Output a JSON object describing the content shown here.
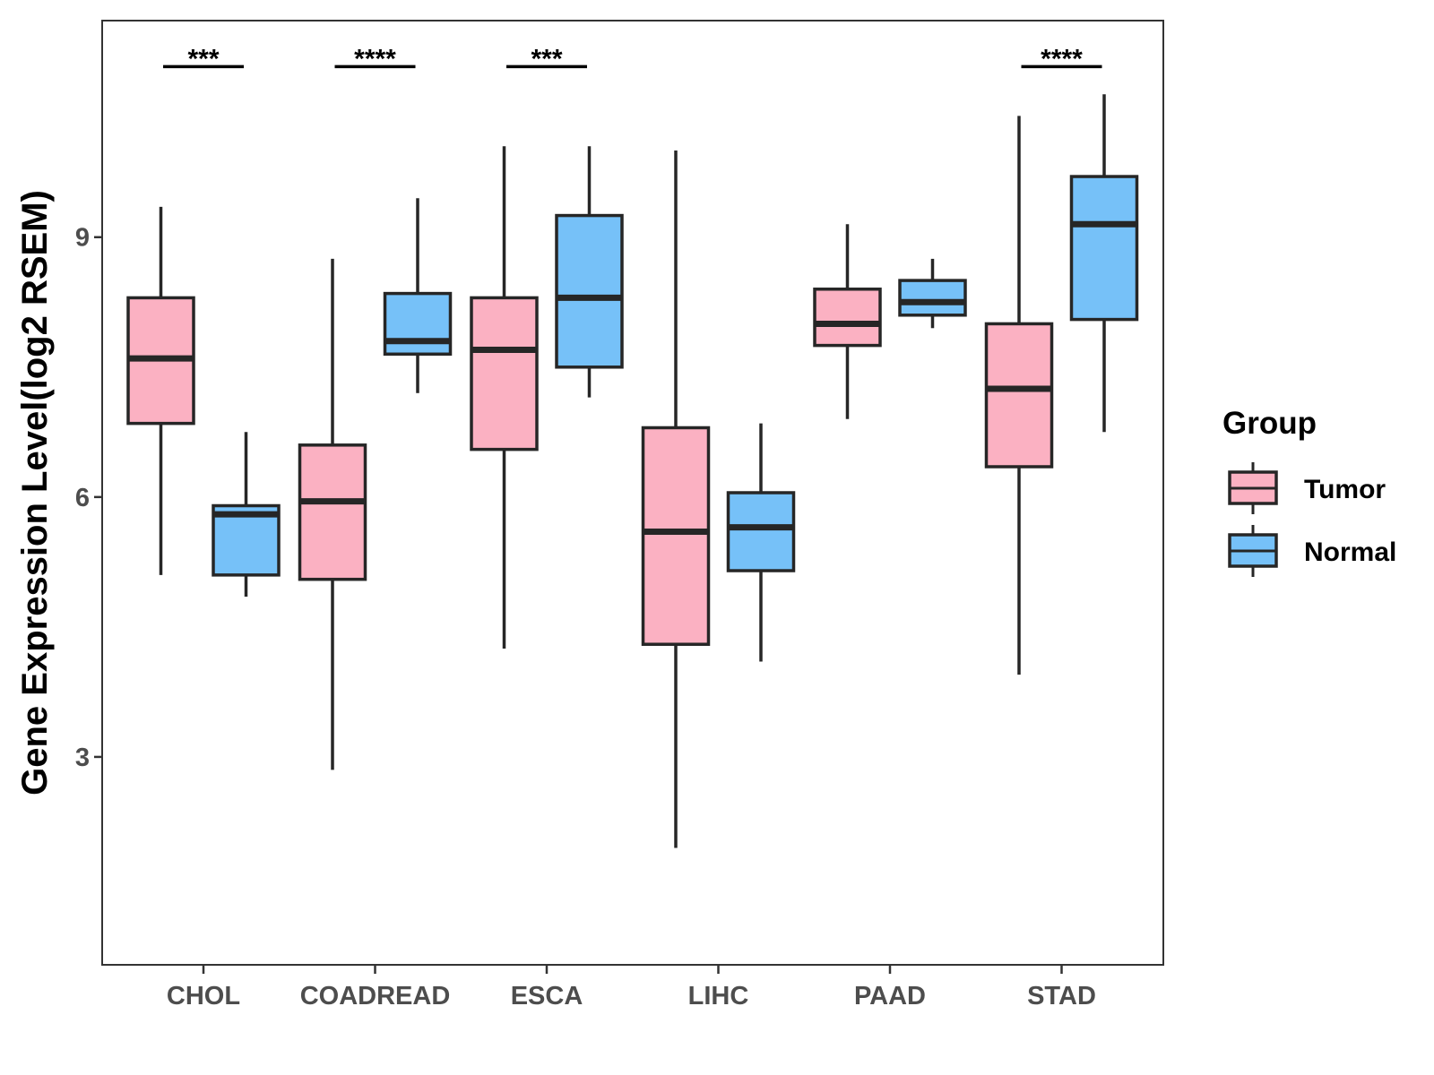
{
  "chart_data": {
    "type": "boxplot",
    "title": "",
    "xlabel": "",
    "ylabel": "Gene Expression Level(log2 RSEM)",
    "ylim": [
      0.6,
      11.5
    ],
    "yticks": [
      3,
      6,
      9
    ],
    "categories": [
      "CHOL",
      "COADREAD",
      "ESCA",
      "LIHC",
      "PAAD",
      "STAD"
    ],
    "legend": {
      "title": "Group",
      "position": "right",
      "entries": [
        "Tumor",
        "Normal"
      ]
    },
    "series": [
      {
        "name": "Tumor",
        "color": "#fbb1c2",
        "boxes": [
          {
            "category": "CHOL",
            "min": 5.1,
            "q1": 6.85,
            "median": 7.6,
            "q3": 8.3,
            "max": 9.35
          },
          {
            "category": "COADREAD",
            "min": 2.85,
            "q1": 5.05,
            "median": 5.95,
            "q3": 6.6,
            "max": 8.75
          },
          {
            "category": "ESCA",
            "min": 4.25,
            "q1": 6.55,
            "median": 7.7,
            "q3": 8.3,
            "max": 10.05
          },
          {
            "category": "LIHC",
            "min": 1.95,
            "q1": 4.3,
            "median": 5.6,
            "q3": 6.8,
            "max": 10.0
          },
          {
            "category": "PAAD",
            "min": 6.9,
            "q1": 7.75,
            "median": 8.0,
            "q3": 8.4,
            "max": 9.15
          },
          {
            "category": "STAD",
            "min": 3.95,
            "q1": 6.35,
            "median": 7.25,
            "q3": 8.0,
            "max": 10.4
          }
        ]
      },
      {
        "name": "Normal",
        "color": "#76c1f8",
        "boxes": [
          {
            "category": "CHOL",
            "min": 4.85,
            "q1": 5.1,
            "median": 5.8,
            "q3": 5.9,
            "max": 6.75
          },
          {
            "category": "COADREAD",
            "min": 7.2,
            "q1": 7.65,
            "median": 7.8,
            "q3": 8.35,
            "max": 9.45
          },
          {
            "category": "ESCA",
            "min": 7.15,
            "q1": 7.5,
            "median": 8.3,
            "q3": 9.25,
            "max": 10.05
          },
          {
            "category": "LIHC",
            "min": 4.1,
            "q1": 5.15,
            "median": 5.65,
            "q3": 6.05,
            "max": 6.85
          },
          {
            "category": "PAAD",
            "min": 7.95,
            "q1": 8.1,
            "median": 8.25,
            "q3": 8.5,
            "max": 8.75
          },
          {
            "category": "STAD",
            "min": 6.75,
            "q1": 8.05,
            "median": 9.15,
            "q3": 9.7,
            "max": 10.65
          }
        ]
      }
    ],
    "annotations": [
      {
        "category": "CHOL",
        "label": "***",
        "y": 11.0
      },
      {
        "category": "COADREAD",
        "label": "****",
        "y": 11.0
      },
      {
        "category": "ESCA",
        "label": "***",
        "y": 11.0
      },
      {
        "category": "STAD",
        "label": "****",
        "y": 11.0
      }
    ]
  }
}
